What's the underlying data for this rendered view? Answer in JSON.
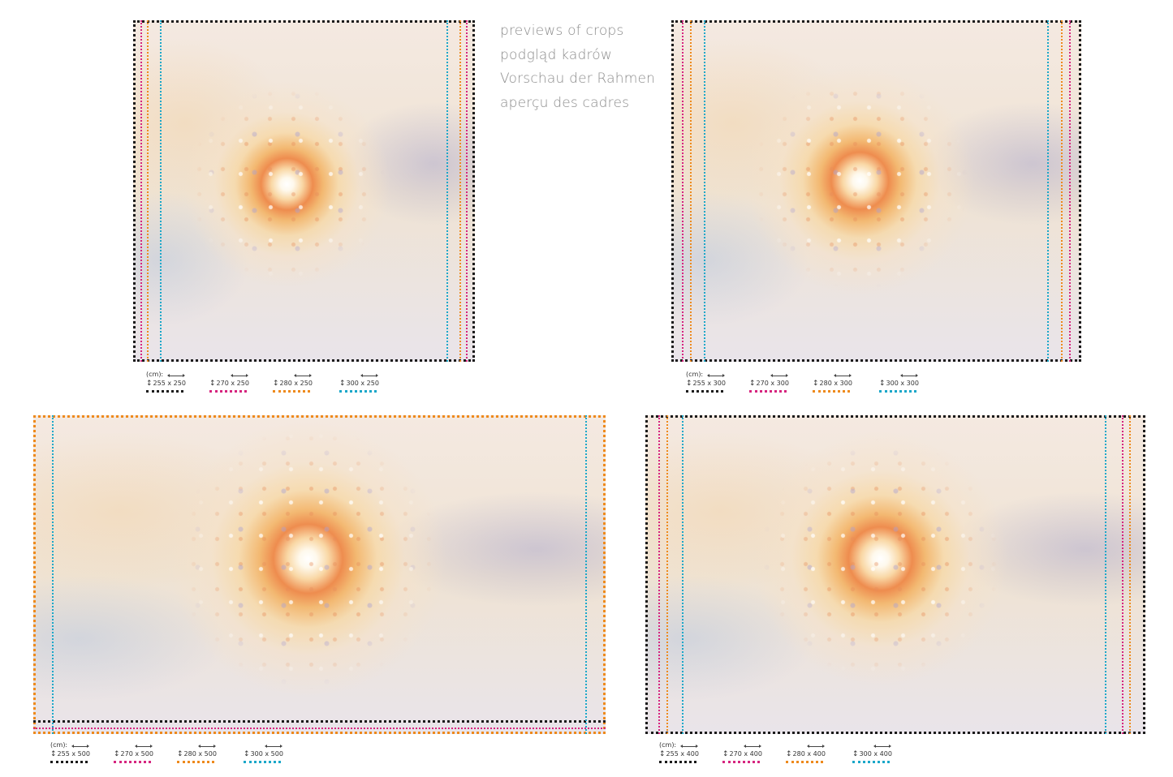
{
  "title_lines": [
    "previews of crops",
    "podgląd kadrów",
    "Vorschau der Rahmen",
    "aperçu des cadres"
  ],
  "unit_label": "(cm):",
  "colors": {
    "black": "#1a1a1a",
    "magenta": "#d6247f",
    "orange": "#ee8a1c",
    "cyan": "#1aa7c9"
  },
  "previews": [
    {
      "legend": [
        {
          "label": "255 x 250",
          "color": "black"
        },
        {
          "label": "270 x 250",
          "color": "magenta"
        },
        {
          "label": "280 x 250",
          "color": "orange"
        },
        {
          "label": "300 x 250",
          "color": "cyan"
        }
      ]
    },
    {
      "legend": [
        {
          "label": "255 x 300",
          "color": "black"
        },
        {
          "label": "270 x 300",
          "color": "magenta"
        },
        {
          "label": "280 x 300",
          "color": "orange"
        },
        {
          "label": "300 x 300",
          "color": "cyan"
        }
      ]
    },
    {
      "legend": [
        {
          "label": "255 x 500",
          "color": "black"
        },
        {
          "label": "270 x 500",
          "color": "magenta"
        },
        {
          "label": "280 x 500",
          "color": "orange"
        },
        {
          "label": "300 x 500",
          "color": "cyan"
        }
      ]
    },
    {
      "legend": [
        {
          "label": "255 x 400",
          "color": "black"
        },
        {
          "label": "270 x 400",
          "color": "magenta"
        },
        {
          "label": "280 x 400",
          "color": "orange"
        },
        {
          "label": "300 x 400",
          "color": "cyan"
        }
      ]
    }
  ]
}
